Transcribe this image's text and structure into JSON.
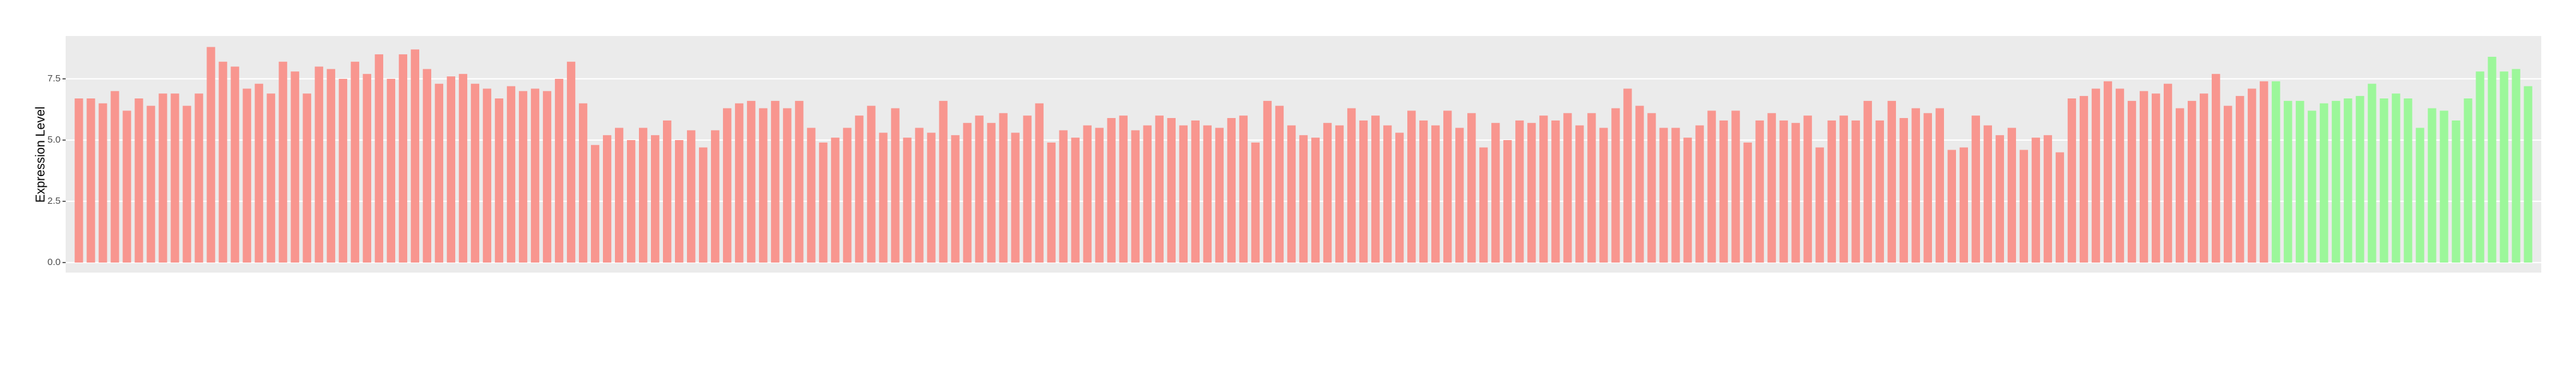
{
  "chart_data": {
    "type": "bar",
    "y_label": "Expression Level",
    "ylim": [
      -0.41,
      9.25
    ],
    "yticks": [
      {
        "value": 0,
        "label": "0.0"
      },
      2.5,
      {
        "value": 5,
        "label": "5.0"
      },
      7.5
    ],
    "grid": true,
    "series": [
      {
        "color": "#f8968f",
        "values": [
          6.7,
          6.7,
          6.5,
          7.0,
          6.2,
          6.7,
          6.4,
          6.9,
          6.9,
          6.4,
          6.9,
          8.8,
          8.2,
          8.0,
          7.1,
          7.3,
          6.9,
          8.2,
          7.8,
          6.9,
          8.0,
          7.9,
          7.5,
          8.2,
          7.7,
          8.5,
          7.5,
          8.5,
          8.7,
          7.9,
          7.3,
          7.6,
          7.7,
          7.3,
          7.1,
          6.7,
          7.2,
          7.0,
          7.1,
          7.0,
          7.5,
          8.2,
          6.5,
          4.8,
          5.2,
          5.5,
          5.0,
          5.5,
          5.2,
          5.8,
          5.0,
          5.4,
          4.7,
          5.4,
          6.3,
          6.5,
          6.6,
          6.3,
          6.6,
          6.3,
          6.6,
          5.5,
          4.9,
          5.1,
          5.5,
          6.0,
          6.4,
          5.3,
          6.3,
          5.1,
          5.5,
          5.3,
          6.6,
          5.2,
          5.7,
          6.0,
          5.7,
          6.1,
          5.3,
          6.0,
          6.5,
          4.9,
          5.4,
          5.1,
          5.6,
          5.5,
          5.9,
          6.0,
          5.4,
          5.6,
          6.0,
          5.9,
          5.6,
          5.8,
          5.6,
          5.5,
          5.9,
          6.0,
          4.9,
          6.6,
          6.4,
          5.6,
          5.2,
          5.1,
          5.7,
          5.6,
          6.3,
          5.8,
          6.0,
          5.6,
          5.3,
          6.2,
          5.8,
          5.6,
          6.2,
          5.5,
          6.1,
          4.7,
          5.7,
          5.0,
          5.8,
          5.7,
          6.0,
          5.8,
          6.1,
          5.6,
          6.1,
          5.5,
          6.3,
          7.1,
          6.4,
          6.1,
          5.5,
          5.5,
          5.1,
          5.6,
          6.2,
          5.8,
          6.2,
          4.9,
          5.8,
          6.1,
          5.8,
          5.7,
          6.0,
          4.7,
          5.8,
          6.0,
          5.8,
          6.6,
          5.8,
          6.6,
          5.9,
          6.3,
          6.1,
          6.3,
          4.6,
          4.7,
          6.0,
          5.6,
          5.2,
          5.5,
          4.6,
          5.1,
          5.2,
          4.5,
          6.7,
          6.8,
          7.1,
          7.4,
          7.1,
          6.6,
          7.0,
          6.9,
          7.3,
          6.3,
          6.6,
          6.9,
          7.7,
          6.4,
          6.8,
          7.1,
          7.4
        ]
      },
      {
        "color": "#9cf79a",
        "values": [
          7.4,
          6.6,
          6.6,
          6.2,
          6.5,
          6.6,
          6.7,
          6.8,
          7.3,
          6.7,
          6.9,
          6.7,
          5.5,
          6.3,
          6.2,
          5.8,
          6.7,
          7.8,
          8.4,
          7.8,
          7.9,
          7.2
        ]
      }
    ]
  }
}
